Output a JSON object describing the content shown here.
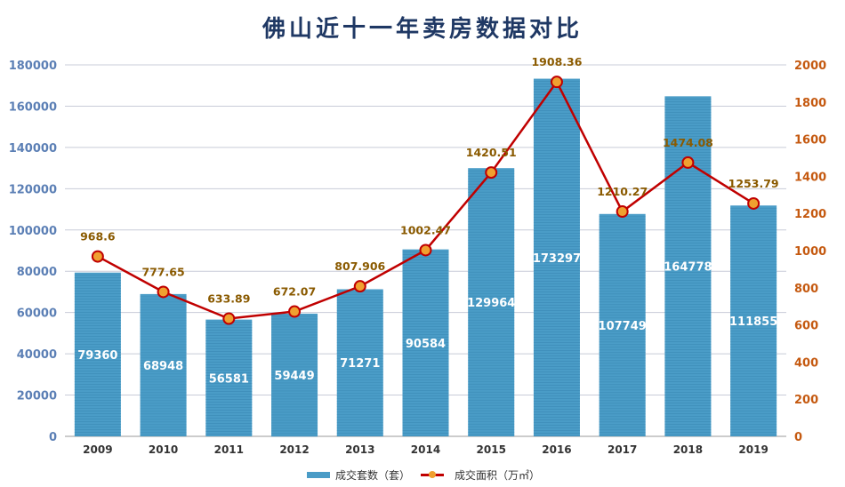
{
  "chart_data": {
    "type": "bar+line",
    "title": "佛山近十一年卖房数据对比",
    "categories": [
      "2009",
      "2010",
      "2011",
      "2012",
      "2013",
      "2014",
      "2015",
      "2016",
      "2017",
      "2018",
      "2019"
    ],
    "series": [
      {
        "name": "成交套数（套）",
        "type": "bar",
        "axis": "left",
        "values": [
          79360,
          68948,
          56581,
          59449,
          71271,
          90584,
          129964,
          173297,
          107749,
          164778,
          111855
        ],
        "labels": [
          "79360",
          "68948",
          "56581",
          "59449",
          "71271",
          "90584",
          "129964",
          "173297",
          "107749",
          "164778",
          "111855"
        ]
      },
      {
        "name": "成交面积（万㎡）",
        "type": "line",
        "axis": "right",
        "values": [
          968.6,
          777.65,
          633.89,
          672.07,
          807.906,
          1002.47,
          1420.51,
          1908.36,
          1210.27,
          1474.08,
          1253.79
        ],
        "labels": [
          "968.6",
          "777.65",
          "633.89",
          "672.07",
          "807.906",
          "1002.47",
          "1420.51",
          "1908.36",
          "1210.27",
          "1474.08",
          "1253.79"
        ]
      }
    ],
    "left_axis": {
      "range": [
        0,
        180000
      ],
      "ticks": [
        "0",
        "20000",
        "40000",
        "60000",
        "80000",
        "100000",
        "120000",
        "140000",
        "160000",
        "180000"
      ]
    },
    "right_axis": {
      "range": [
        0,
        2000
      ],
      "ticks": [
        "0",
        "200",
        "400",
        "600",
        "800",
        "1000",
        "1200",
        "1400",
        "1600",
        "1800",
        "2000"
      ]
    },
    "grid": true,
    "legend": "bottom",
    "colors": {
      "bar": "#4a9cc7",
      "line": "#c00000",
      "marker": "#f0a030",
      "left_axis": "#5b7fb5",
      "right_axis": "#c55a11",
      "title": "#1f3864"
    }
  }
}
